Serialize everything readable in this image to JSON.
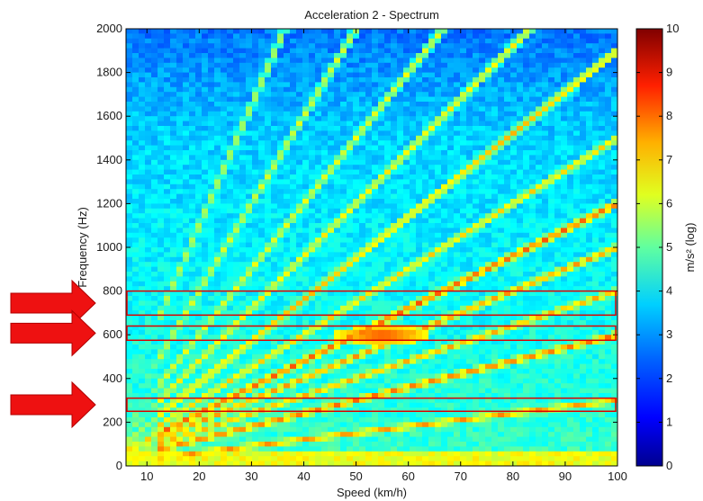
{
  "chart_data": {
    "type": "heatmap",
    "title": "Acceleration 2 - Spectrum",
    "xlabel": "Speed (km/h)",
    "ylabel": "Frequency (Hz)",
    "xlim": [
      6,
      100
    ],
    "ylim": [
      0,
      2000
    ],
    "x_ticks": [
      10,
      20,
      30,
      40,
      50,
      60,
      70,
      80,
      90,
      100
    ],
    "y_ticks": [
      0,
      200,
      400,
      600,
      800,
      1000,
      1200,
      1400,
      1600,
      1800,
      2000
    ],
    "colorbar": {
      "label": "m/s² (log)",
      "range": [
        0,
        10
      ],
      "ticks": [
        0,
        1,
        2,
        3,
        4,
        5,
        6,
        7,
        8,
        9,
        10
      ],
      "colormap": "jet",
      "colors": [
        "#00008f",
        "#0000ff",
        "#0080ff",
        "#00ffff",
        "#80ff80",
        "#ffff00",
        "#ff8000",
        "#ff0000",
        "#800000"
      ]
    },
    "highlight_bands": [
      {
        "y0": 690,
        "y1": 800
      },
      {
        "y0": 575,
        "y1": 640
      },
      {
        "y0": 250,
        "y1": 310
      }
    ],
    "ridges": [
      {
        "slope": 3,
        "level": 7.5
      },
      {
        "slope": 6,
        "level": 7.8
      },
      {
        "slope": 8,
        "level": 7.2
      },
      {
        "slope": 10,
        "level": 7.4
      },
      {
        "slope": 12,
        "level": 8
      },
      {
        "slope": 15,
        "level": 6.8
      },
      {
        "slope": 19,
        "level": 7
      },
      {
        "slope": 24,
        "level": 6.5
      },
      {
        "slope": 30,
        "level": 6.2
      },
      {
        "slope": 40,
        "level": 6
      },
      {
        "slope": 55,
        "level": 5.8
      }
    ],
    "hot_spot": {
      "x": 55,
      "y": 600,
      "level": 8.2
    },
    "axes_color": "#000000",
    "box_color": "#dd0000",
    "arrow_color": "#ee1111"
  }
}
